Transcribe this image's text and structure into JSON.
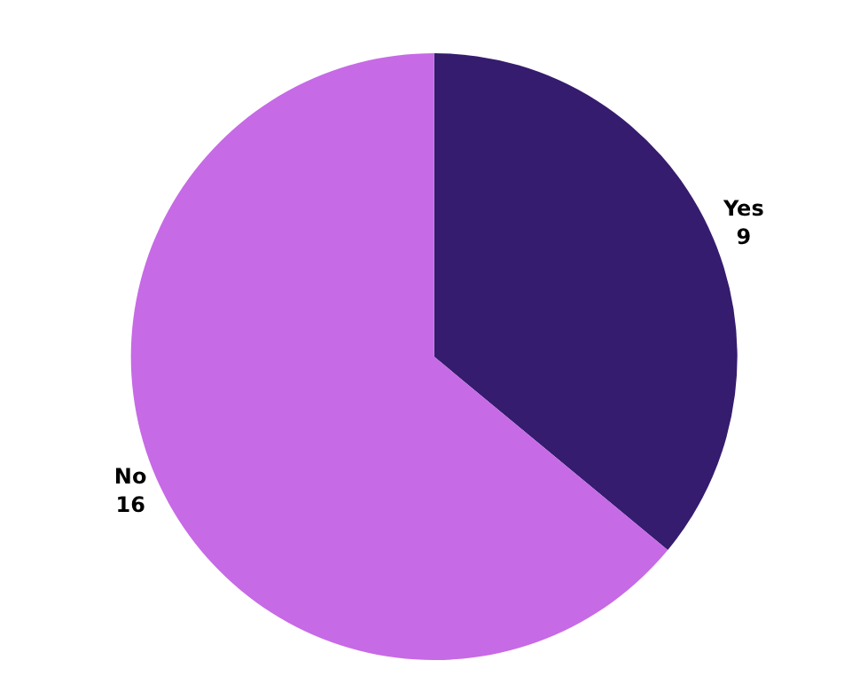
{
  "chart_data": {
    "type": "pie",
    "categories": [
      "Yes",
      "No"
    ],
    "values": [
      9,
      16
    ],
    "colors": [
      "#351c6e",
      "#c76ae6"
    ],
    "data_labels": true,
    "legend": false
  }
}
